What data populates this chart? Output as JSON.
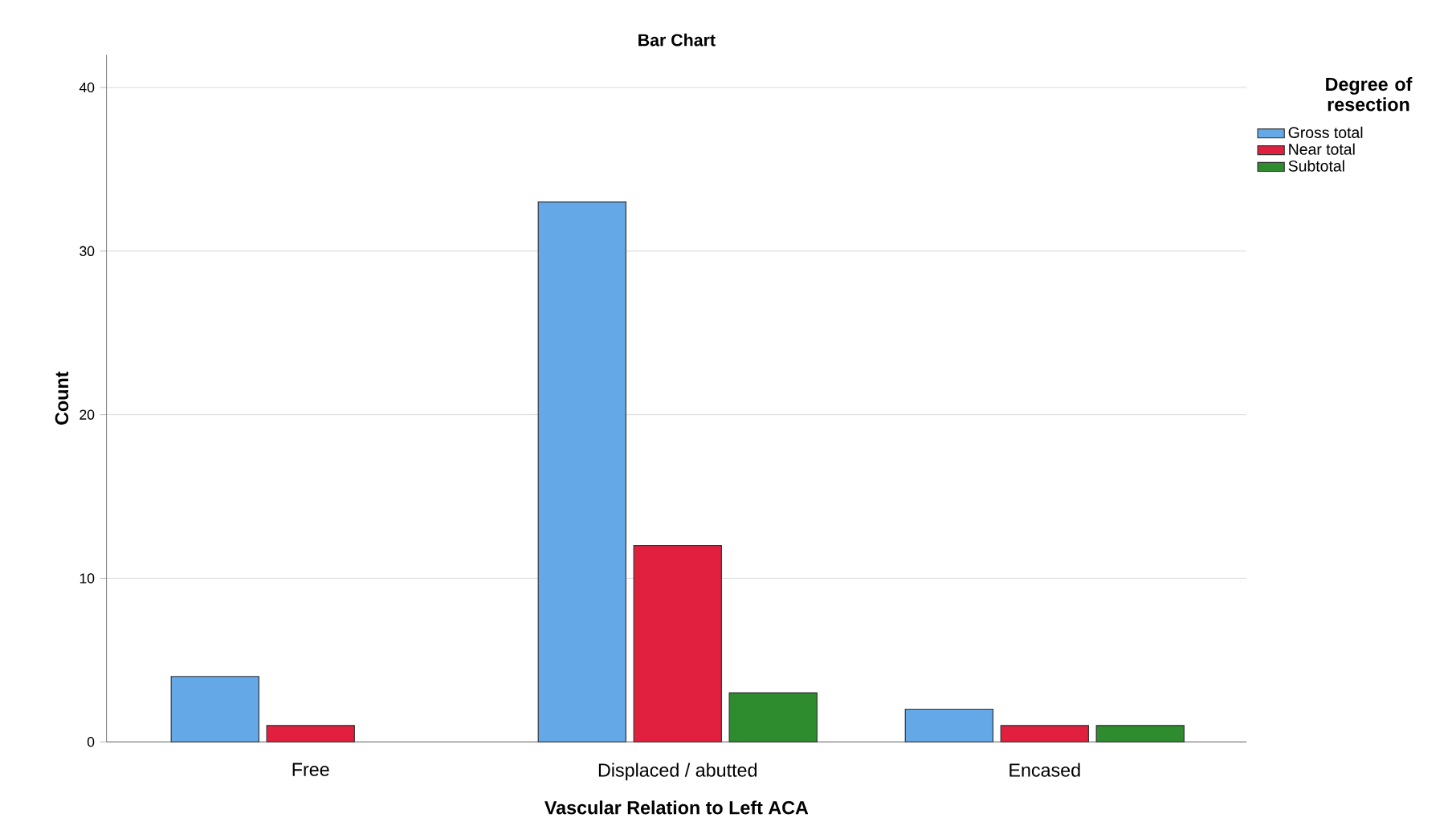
{
  "chart_data": {
    "type": "bar",
    "title": "Bar Chart",
    "xlabel": "Vascular Relation to Left ACA",
    "ylabel": "Count",
    "legend_title": "Degree of resection",
    "categories": [
      "Free",
      "Displaced / abutted",
      "Encased"
    ],
    "series": [
      {
        "name": "Gross total",
        "color": "#64a8e8",
        "values": [
          4,
          33,
          2
        ]
      },
      {
        "name": "Near total",
        "color": "#e0203e",
        "values": [
          1,
          12,
          1
        ]
      },
      {
        "name": "Subtotal",
        "color": "#2e8b2e",
        "values": [
          null,
          3,
          1
        ]
      }
    ],
    "ylim": [
      0,
      42
    ],
    "yticks": [
      0,
      10,
      20,
      30,
      40
    ],
    "grid": "y",
    "legend": "top right"
  }
}
